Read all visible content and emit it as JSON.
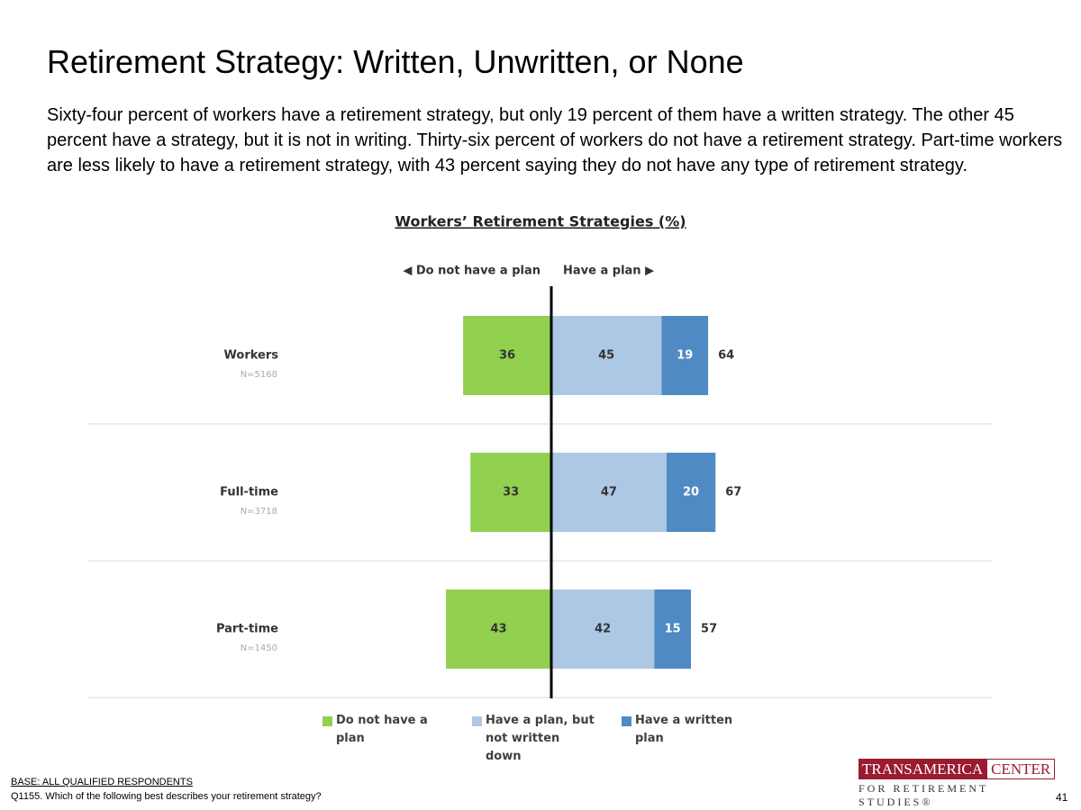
{
  "header": {
    "title": "Retirement Strategy: Written, Unwritten, or None",
    "subtitle": "Sixty-four percent of workers have a retirement strategy, but only 19 percent of them have a written strategy. The other 45 percent have a strategy, but it is not in writing. Thirty-six percent of workers do not have a retirement strategy. Part-time workers are less likely to have a retirement strategy, with 43 percent saying they do not have any type of retirement strategy."
  },
  "chart_data": {
    "type": "diverging-bar",
    "title": "Workers’ Retirement Strategies (%)",
    "left_label": "◀ Do not have a plan",
    "right_label": "Have a plan ▶",
    "categories": [
      "Workers",
      "Full-time",
      "Part-time"
    ],
    "sample_sizes": [
      "N=5168",
      "N=3718",
      "N=1450"
    ],
    "series": [
      {
        "name": "Do not have a plan",
        "color": "#92d050",
        "values": [
          36,
          33,
          43
        ]
      },
      {
        "name": "Have a plan, but not written down",
        "color": "#adc8e4",
        "values": [
          45,
          47,
          42
        ]
      },
      {
        "name": "Have a written plan",
        "color": "#4f8ac4",
        "values": [
          19,
          20,
          15
        ]
      }
    ],
    "totals": [
      64,
      67,
      57
    ]
  },
  "footer": {
    "base": "BASE: ALL QUALIFIED RESPONDENTS",
    "question": "Q1155. Which of the following best describes your retirement strategy?",
    "logo_main": "TRANSAMERICA",
    "logo_center": "CENTER",
    "logo_sub": "FOR RETIREMENT STUDIES®",
    "page": "41"
  }
}
